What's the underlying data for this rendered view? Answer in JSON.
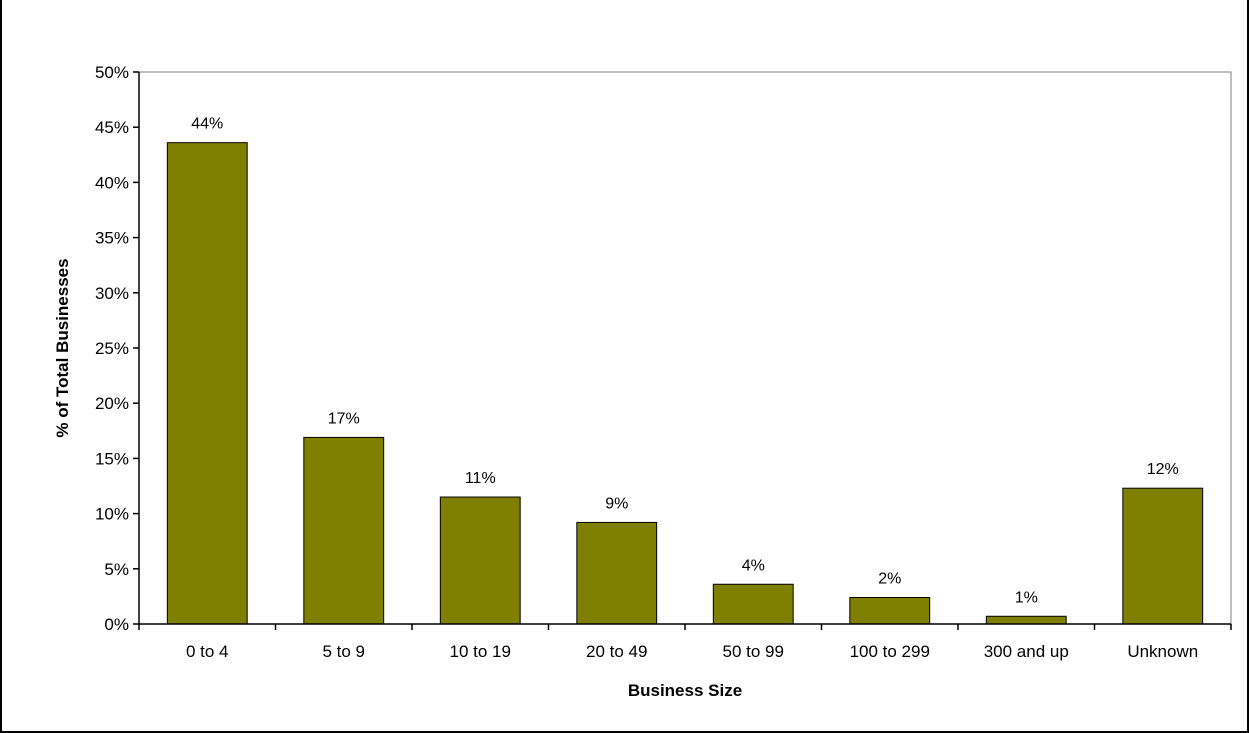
{
  "chart_data": {
    "type": "bar",
    "title": "",
    "xlabel": "Business Size",
    "ylabel": "% of Total Businesses",
    "categories": [
      "0 to 4",
      "5 to 9",
      "10 to 19",
      "20 to 49",
      "50 to 99",
      "100 to 299",
      "300 and up",
      "Unknown"
    ],
    "values": [
      43.6,
      16.9,
      11.5,
      9.2,
      3.6,
      2.4,
      0.7,
      12.3
    ],
    "data_labels": [
      "44%",
      "17%",
      "11%",
      "9%",
      "4%",
      "2%",
      "1%",
      "12%"
    ],
    "ylim": [
      0,
      50
    ],
    "yticks": [
      0,
      5,
      10,
      15,
      20,
      25,
      30,
      35,
      40,
      45,
      50
    ],
    "ytick_labels": [
      "0%",
      "5%",
      "10%",
      "15%",
      "20%",
      "25%",
      "30%",
      "35%",
      "40%",
      "45%",
      "50%"
    ],
    "grid": false,
    "legend": "none",
    "bar_color": "#808000"
  }
}
